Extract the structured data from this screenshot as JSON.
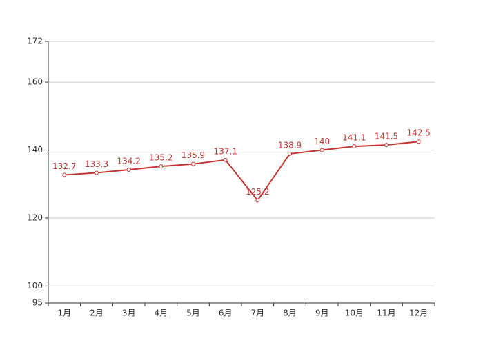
{
  "chart_data": {
    "type": "line",
    "categories": [
      "1月",
      "2月",
      "3月",
      "4月",
      "5月",
      "6月",
      "7月",
      "8月",
      "9月",
      "10月",
      "11月",
      "12月"
    ],
    "series": [
      {
        "color": "#c23531",
        "values": [
          132.7,
          133.3,
          134.2,
          135.2,
          135.9,
          137.1,
          125.2,
          138.9,
          140,
          141.1,
          141.5,
          142.5
        ]
      }
    ],
    "ylim": [
      95,
      172
    ],
    "yticks": [
      95,
      100,
      120,
      140,
      160,
      172
    ],
    "grid": true
  }
}
